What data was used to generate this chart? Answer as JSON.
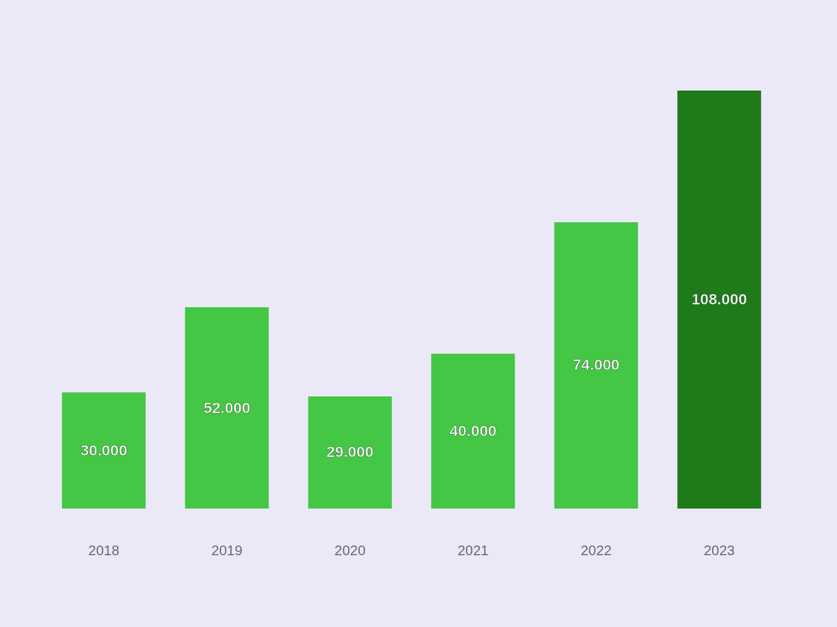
{
  "chart_data": {
    "type": "bar",
    "categories": [
      "2018",
      "2019",
      "2020",
      "2021",
      "2022",
      "2023"
    ],
    "values": [
      30000,
      52000,
      29000,
      40000,
      74000,
      108000
    ],
    "value_labels": [
      "30.000",
      "52.000",
      "29.000",
      "40.000",
      "74.000",
      "108.000"
    ],
    "colors": [
      "#44c744",
      "#44c744",
      "#44c744",
      "#44c744",
      "#44c744",
      "#1f7a1a"
    ],
    "tick_labels": "x",
    "grid": false
  }
}
